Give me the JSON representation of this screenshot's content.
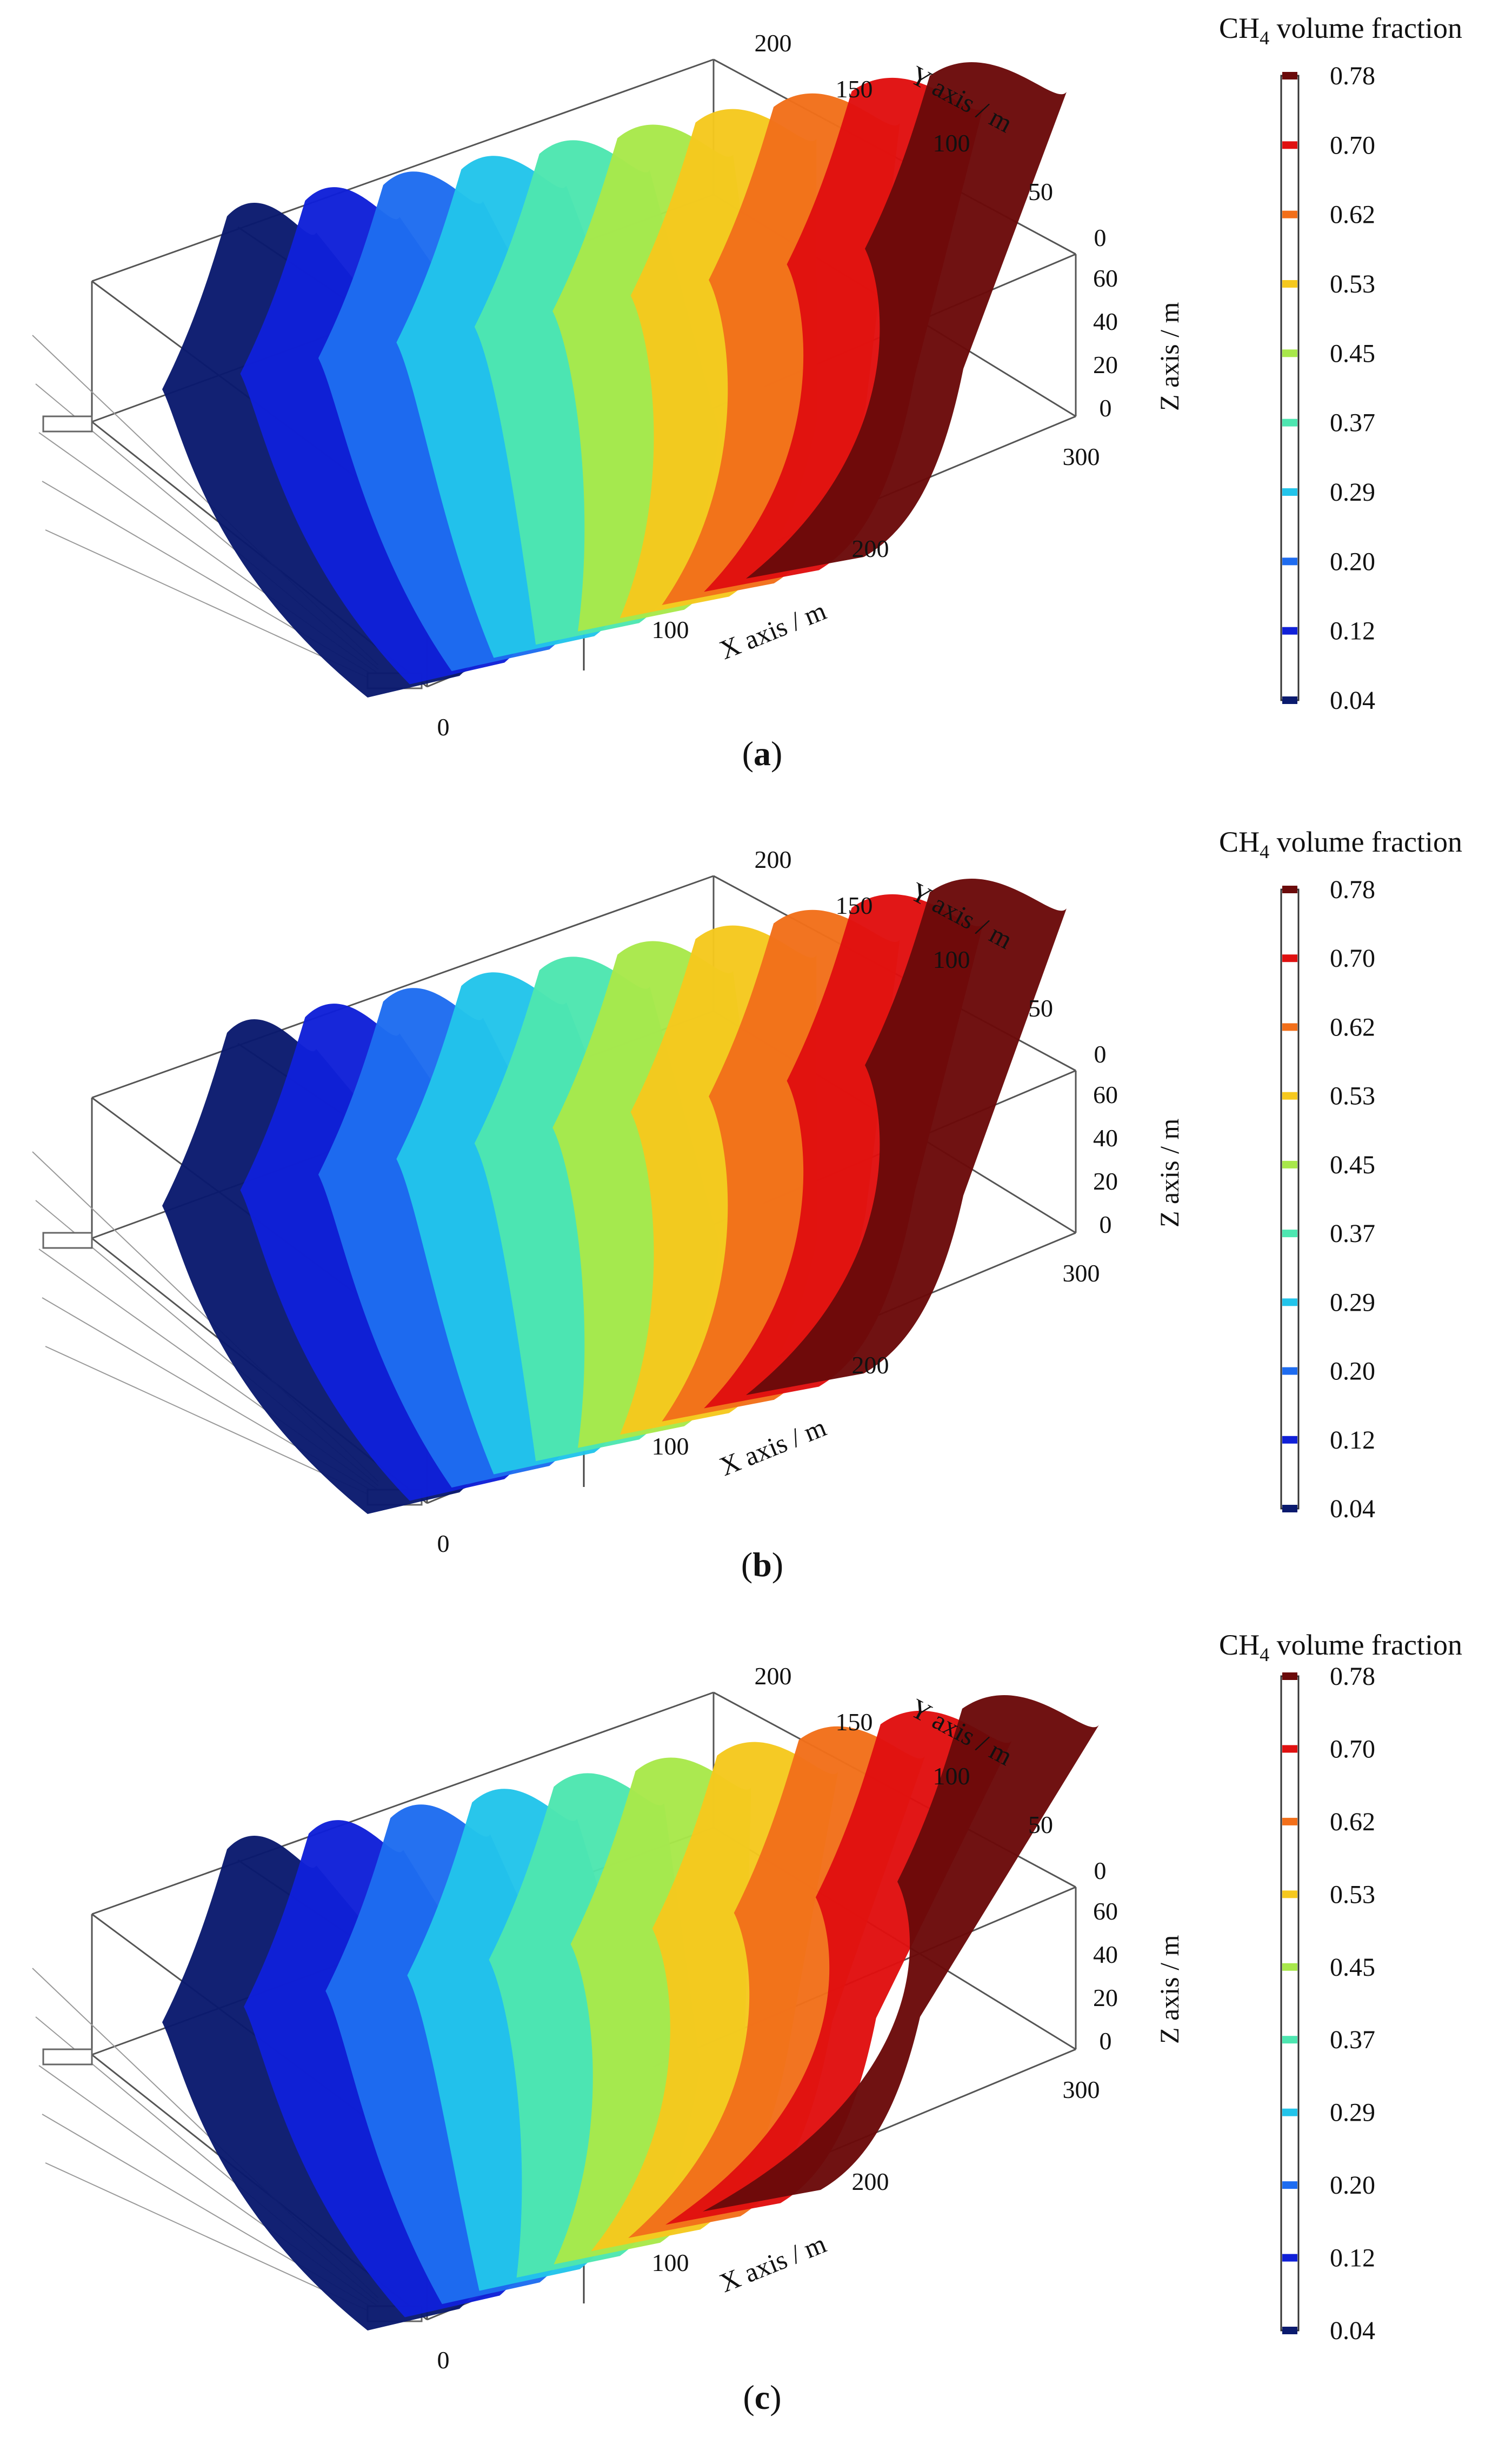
{
  "chart_data": [
    {
      "type": "3d-isosurface",
      "caption": "a",
      "colorbar": {
        "title_main": "CH",
        "title_sub": "4",
        "title_rest": " volume fraction",
        "ticks": [
          "0.78",
          "0.70",
          "0.62",
          "0.53",
          "0.45",
          "0.37",
          "0.29",
          "0.20",
          "0.12",
          "0.04"
        ],
        "colors": [
          "#6b0a0a",
          "#e01010",
          "#f26f1a",
          "#f5c81e",
          "#a8e84a",
          "#4de6b0",
          "#22c4ea",
          "#1e6cf0",
          "#1020d8",
          "#0a1a6e"
        ]
      },
      "axes": {
        "x_label": "X axis / m",
        "x_ticks": [
          "0",
          "100",
          "200",
          "300"
        ],
        "y_label": "Y axis / m",
        "y_ticks": [
          "200",
          "150",
          "100",
          "50",
          "0"
        ],
        "z_label": "Z axis / m",
        "z_ticks": [
          "60",
          "40",
          "20",
          "0"
        ]
      }
    },
    {
      "type": "3d-isosurface",
      "caption": "b",
      "colorbar": {
        "title_main": "CH",
        "title_sub": "4",
        "title_rest": " volume fraction",
        "ticks": [
          "0.78",
          "0.70",
          "0.62",
          "0.53",
          "0.45",
          "0.37",
          "0.29",
          "0.20",
          "0.12",
          "0.04"
        ],
        "colors": [
          "#6b0a0a",
          "#e01010",
          "#f26f1a",
          "#f5c81e",
          "#a8e84a",
          "#4de6b0",
          "#22c4ea",
          "#1e6cf0",
          "#1020d8",
          "#0a1a6e"
        ]
      },
      "axes": {
        "x_label": "X axis / m",
        "x_ticks": [
          "0",
          "100",
          "200",
          "300"
        ],
        "y_label": "Y axis / m",
        "y_ticks": [
          "200",
          "150",
          "100",
          "50",
          "0"
        ],
        "z_label": "Z axis / m",
        "z_ticks": [
          "60",
          "40",
          "20",
          "0"
        ]
      }
    },
    {
      "type": "3d-isosurface",
      "caption": "c",
      "colorbar": {
        "title_main": "CH",
        "title_sub": "4",
        "title_rest": " volume fraction",
        "ticks": [
          "0.78",
          "0.70",
          "0.62",
          "0.53",
          "0.45",
          "0.37",
          "0.29",
          "0.20",
          "0.12",
          "0.04"
        ],
        "colors": [
          "#6b0a0a",
          "#e01010",
          "#f26f1a",
          "#f5c81e",
          "#a8e84a",
          "#4de6b0",
          "#22c4ea",
          "#1e6cf0",
          "#1020d8",
          "#0a1a6e"
        ]
      },
      "axes": {
        "x_label": "X axis / m",
        "x_ticks": [
          "0",
          "100",
          "200",
          "300"
        ],
        "y_label": "Y axis / m",
        "y_ticks": [
          "200",
          "150",
          "100",
          "50",
          "0"
        ],
        "z_label": "Z axis / m",
        "z_ticks": [
          "60",
          "40",
          "20",
          "0"
        ]
      }
    }
  ]
}
